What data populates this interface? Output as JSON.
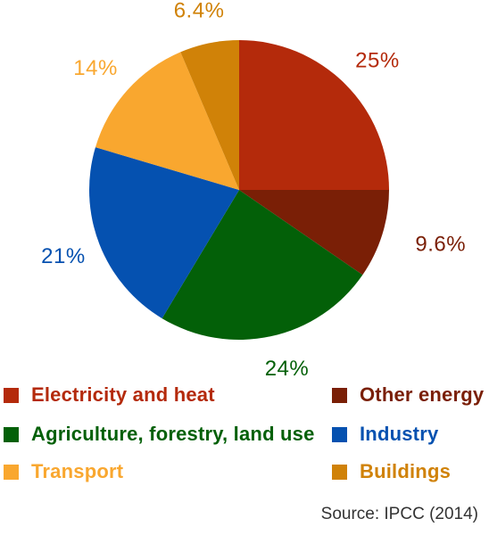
{
  "chart_data": {
    "type": "pie",
    "slices": [
      {
        "label": "Electricity and heat",
        "value": 25,
        "value_label": "25%",
        "color": "#b42a0b"
      },
      {
        "label": "Other energy",
        "value": 9.6,
        "value_label": "9.6%",
        "color": "#7a1f06"
      },
      {
        "label": "Agriculture, forestry, land use",
        "value": 24,
        "value_label": "24%",
        "color": "#036008"
      },
      {
        "label": "Industry",
        "value": 21,
        "value_label": "21%",
        "color": "#0551b0"
      },
      {
        "label": "Transport",
        "value": 14,
        "value_label": "14%",
        "color": "#f9a72f"
      },
      {
        "label": "Buildings",
        "value": 6.4,
        "value_label": "6.4%",
        "color": "#d08208"
      }
    ],
    "start_angle_deg": 0,
    "direction": "clockwise",
    "legend_position": "bottom"
  },
  "legend": {
    "items": [
      {
        "label": "Electricity and heat",
        "color": "#b42a0b"
      },
      {
        "label": "Other energy",
        "color": "#7a1f06"
      },
      {
        "label": "Agriculture, forestry, land use",
        "color": "#036008"
      },
      {
        "label": "Industry",
        "color": "#0551b0"
      },
      {
        "label": "Transport",
        "color": "#f9a72f"
      },
      {
        "label": "Buildings",
        "color": "#d08208"
      }
    ]
  },
  "source": "Source: IPCC (2014)"
}
